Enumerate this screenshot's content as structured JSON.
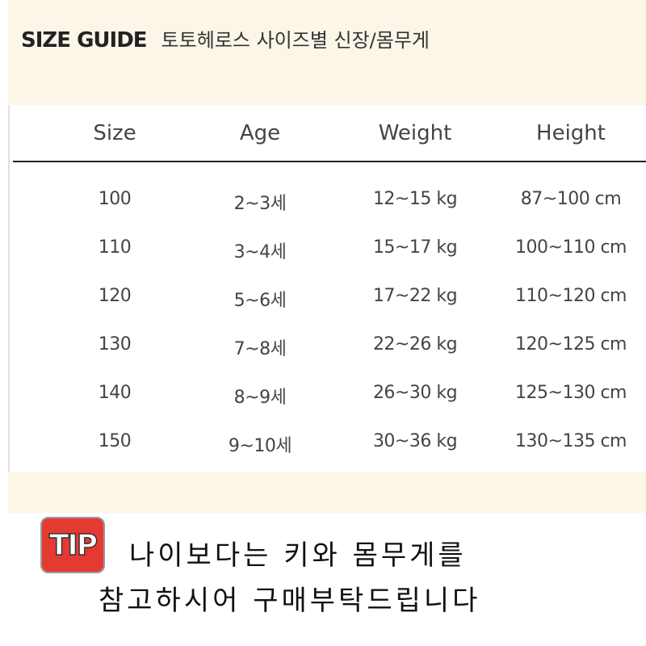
{
  "header": {
    "title_en": "SIZE GUIDE",
    "title_ko": "토토헤로스 사이즈별 신장/몸무게"
  },
  "table": {
    "columns": [
      "Size",
      "Age",
      "Weight",
      "Height"
    ],
    "rows": [
      [
        "100",
        "2~3세",
        "12~15 kg",
        "87~100 cm"
      ],
      [
        "110",
        "3~4세",
        "15~17 kg",
        "100~110 cm"
      ],
      [
        "120",
        "5~6세",
        "17~22 kg",
        "110~120 cm"
      ],
      [
        "130",
        "7~8세",
        "22~26 kg",
        "120~125 cm"
      ],
      [
        "140",
        "8~9세",
        "26~30 kg",
        "125~130 cm"
      ],
      [
        "150",
        "9~10세",
        "30~36 kg",
        "130~135 cm"
      ]
    ]
  },
  "tip": {
    "badge": "TIP",
    "line1": "나이보다는 키와 몸무게를",
    "line2": "참고하시어 구매부탁드립니다",
    "badge_color": "#e53a32"
  }
}
